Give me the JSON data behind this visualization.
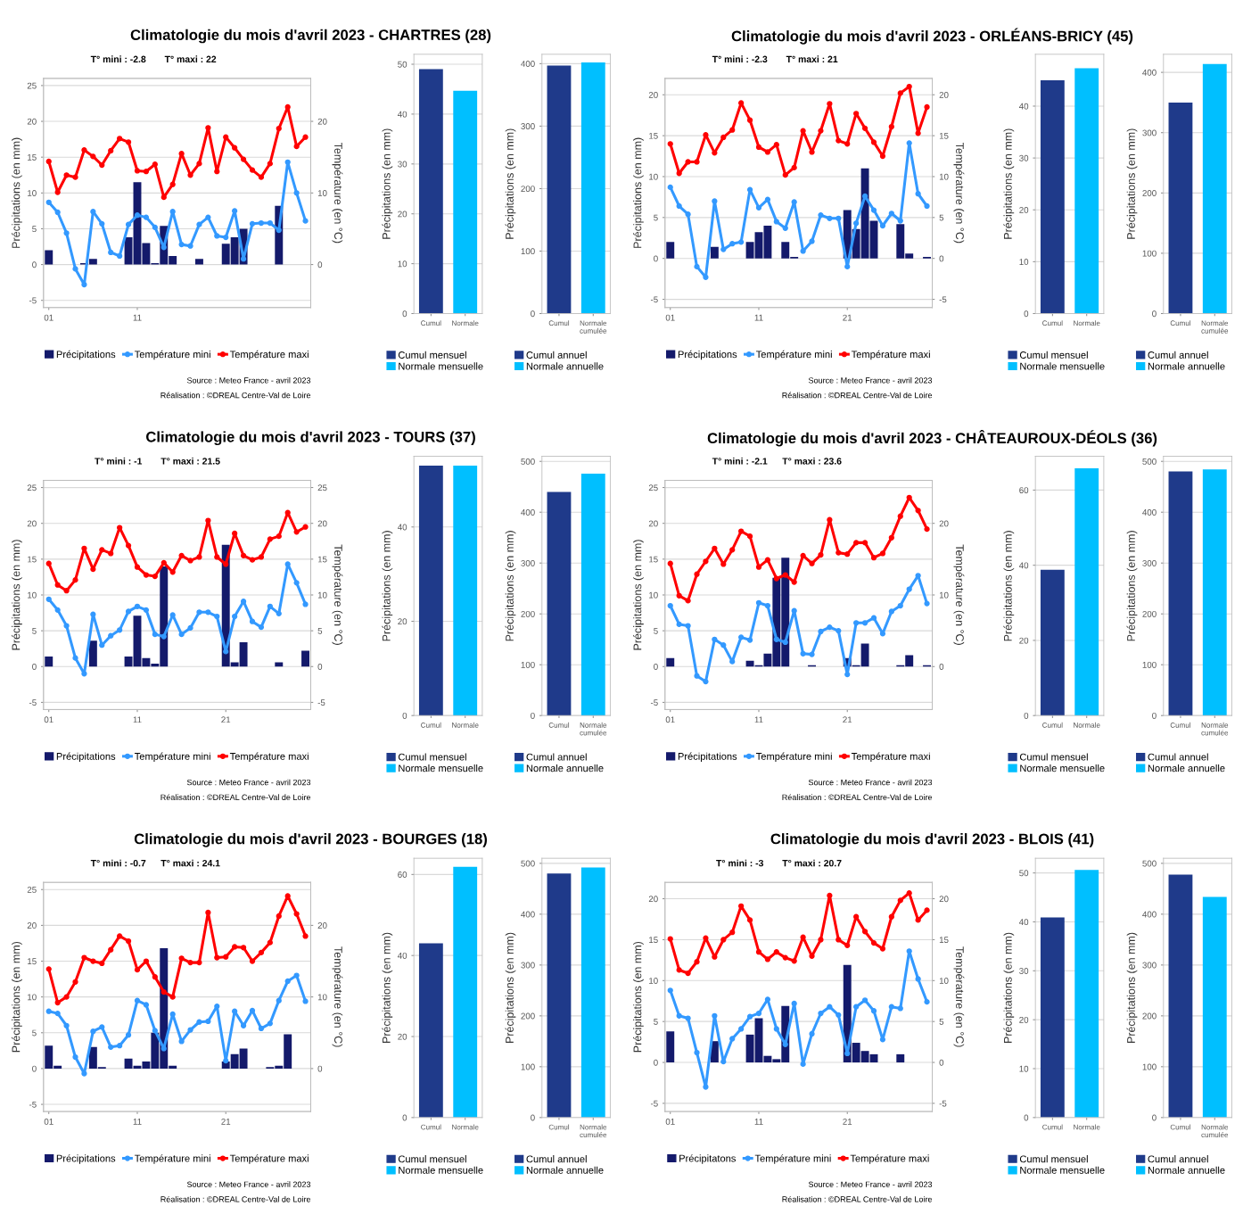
{
  "chart_data": [
    {
      "type": "bar",
      "title": "Climatologie du mois d'avril 2023 - CHARTRES (28)",
      "ylabel": "Précipitations (en mm)",
      "y2label": "Température (en °C)",
      "annotations": [
        "T° mini : -2.8",
        "T° maxi : 22",
        "Source : Meteo France - avril 2023",
        "Réalisation : ©DREAL Centre-Val de Loire"
      ],
      "categories": [
        "01",
        null,
        null,
        null,
        null,
        null,
        null,
        null,
        null,
        null,
        "11",
        null,
        null,
        null,
        null,
        null,
        null,
        null,
        null,
        null,
        null,
        null,
        null,
        null,
        null,
        null,
        null,
        null,
        null,
        null
      ],
      "series": [
        {
          "name": "Précipitations",
          "type": "bar",
          "color": "#141a6b",
          "values": [
            2.0,
            0,
            0,
            0,
            0.2,
            0.8,
            0,
            0,
            0,
            3.8,
            11.5,
            3.0,
            0.2,
            5.4,
            1.2,
            0,
            0,
            0.8,
            0,
            0,
            2.9,
            3.8,
            5.0,
            0,
            0,
            0,
            8.2,
            0,
            0,
            0
          ]
        },
        {
          "name": "Température mini",
          "type": "line",
          "axis": "y2",
          "color": "#3399ff",
          "values": [
            8.7,
            7.3,
            4.4,
            -0.6,
            -2.8,
            7.4,
            5.7,
            1.7,
            1.2,
            5.6,
            6.9,
            6.6,
            5.2,
            2.4,
            7.4,
            2.8,
            2.6,
            5.6,
            6.6,
            4.0,
            3.8,
            7.5,
            0.8,
            5.7,
            5.8,
            5.8,
            4.8,
            14.3,
            10.0,
            6.1
          ]
        },
        {
          "name": "Température maxi",
          "type": "line",
          "axis": "y2",
          "color": "#ff0000",
          "values": [
            14.4,
            10.1,
            12.5,
            12.2,
            16.0,
            15.1,
            13.9,
            15.9,
            17.6,
            17.1,
            13.1,
            13.0,
            14.0,
            9.4,
            11.2,
            15.5,
            12.5,
            14.1,
            19.1,
            13.0,
            17.8,
            16.3,
            14.7,
            13.2,
            12.2,
            14.1,
            19.0,
            22.0,
            16.5,
            17.8
          ]
        }
      ],
      "ylim": [
        -6,
        26
      ],
      "yticks": [
        -5,
        0,
        5,
        10,
        15,
        20,
        25
      ],
      "y2lim": [
        -6,
        26
      ],
      "y2ticks": [
        0,
        10,
        20
      ],
      "grid": "y",
      "legend": "bottom",
      "marker": "circle"
    },
    {
      "type": "bar",
      "ylabel": "Précipitations (en mm)",
      "categories": [
        "Cumul",
        "Normale"
      ],
      "stacked": true,
      "series": [
        {
          "name": "Cumul mensuel",
          "color": "#1f3a8a",
          "values": [
            49.0,
            null
          ]
        },
        {
          "name": "Normale mensuelle",
          "color": "#00bfff",
          "values": [
            null,
            44.7
          ]
        }
      ],
      "ylim": [
        0,
        52
      ],
      "yticks": [
        0,
        10,
        20,
        30,
        40,
        50
      ],
      "grid": "y",
      "legend": "bottom"
    },
    {
      "type": "bar",
      "ylabel": "Précipitations (en mm)",
      "categories": [
        "Cumul",
        "Normale\ncumulée"
      ],
      "stacked": true,
      "series": [
        {
          "name": "Cumul annuel",
          "color": "#1f3a8a",
          "values": [
            397,
            null
          ]
        },
        {
          "name": "Normale annuelle",
          "color": "#00bfff",
          "values": [
            null,
            402
          ]
        }
      ],
      "ylim": [
        0,
        415
      ],
      "yticks": [
        0,
        100,
        200,
        300,
        400
      ],
      "grid": "y",
      "legend": "bottom"
    },
    {
      "type": "bar",
      "title": "Climatologie du mois d'avril 2023 - ORLÉANS-BRICY (45)",
      "ylabel": "Précipitations (en mm)",
      "y2label": "Température (en °C)",
      "annotations": [
        "T° mini : -2.3",
        "T° maxi : 21",
        "Source : Meteo France - avril 2023",
        "Réalisation : ©DREAL Centre-Val de Loire"
      ],
      "categories": [
        "01",
        null,
        null,
        null,
        null,
        null,
        null,
        null,
        null,
        null,
        "11",
        null,
        null,
        null,
        null,
        null,
        null,
        null,
        null,
        null,
        "21",
        null,
        null,
        null,
        null,
        null,
        null,
        null,
        null,
        null
      ],
      "series": [
        {
          "name": "Précipitations",
          "type": "bar",
          "color": "#141a6b",
          "values": [
            2.0,
            0,
            0,
            0,
            0,
            1.4,
            0,
            0,
            0,
            2.0,
            3.2,
            4.0,
            0,
            2.0,
            0.2,
            0,
            0,
            0,
            0,
            0,
            5.9,
            3.6,
            11.0,
            4.6,
            0,
            0,
            4.2,
            0.6,
            0,
            0.2
          ]
        },
        {
          "name": "Température mini",
          "type": "line",
          "axis": "y2",
          "color": "#3399ff",
          "values": [
            8.7,
            6.4,
            5.4,
            -1.0,
            -2.3,
            7.0,
            1.1,
            1.8,
            2.0,
            8.4,
            6.2,
            7.2,
            4.5,
            3.7,
            6.9,
            0.9,
            2.1,
            5.3,
            4.9,
            4.9,
            -1.0,
            4.3,
            7.6,
            5.9,
            4.0,
            5.5,
            4.6,
            14.1,
            7.9,
            6.4
          ]
        },
        {
          "name": "Température maxi",
          "type": "line",
          "axis": "y2",
          "color": "#ff0000",
          "values": [
            14.0,
            10.4,
            11.8,
            11.8,
            15.1,
            12.9,
            14.8,
            15.7,
            19.0,
            16.9,
            13.6,
            13.0,
            13.9,
            10.2,
            11.1,
            15.6,
            13.0,
            15.6,
            18.9,
            14.4,
            14.0,
            17.7,
            15.9,
            14.2,
            12.5,
            16.1,
            20.2,
            21.0,
            15.3,
            18.5
          ]
        }
      ],
      "ylim": [
        -6,
        22
      ],
      "yticks": [
        -5,
        0,
        5,
        10,
        15,
        20
      ],
      "y2lim": [
        -6,
        22
      ],
      "y2ticks": [
        -5,
        0,
        5,
        10,
        15,
        20
      ],
      "grid": "y",
      "legend": "bottom",
      "marker": "circle"
    },
    {
      "type": "bar",
      "ylabel": "Précipitations (en mm)",
      "categories": [
        "Cumul",
        "Normale"
      ],
      "stacked": true,
      "series": [
        {
          "name": "Cumul mensuel",
          "color": "#1f3a8a",
          "values": [
            45.0,
            null
          ]
        },
        {
          "name": "Normale mensuelle",
          "color": "#00bfff",
          "values": [
            null,
            47.3
          ]
        }
      ],
      "ylim": [
        0,
        50
      ],
      "yticks": [
        0,
        10,
        20,
        30,
        40
      ],
      "grid": "y",
      "legend": "bottom"
    },
    {
      "type": "bar",
      "ylabel": "Précipitations (en mm)",
      "categories": [
        "Cumul",
        "Normale\ncumulée"
      ],
      "stacked": true,
      "series": [
        {
          "name": "Cumul annuel",
          "color": "#1f3a8a",
          "values": [
            350,
            null
          ]
        },
        {
          "name": "Normale annuelle",
          "color": "#00bfff",
          "values": [
            null,
            414
          ]
        }
      ],
      "ylim": [
        0,
        430
      ],
      "yticks": [
        0,
        100,
        200,
        300,
        400
      ],
      "grid": "y",
      "legend": "bottom"
    },
    {
      "type": "bar",
      "title": "Climatologie du mois d'avril 2023 - TOURS (37)",
      "ylabel": "Précipitations (en mm)",
      "y2label": "Température (en °C)",
      "annotations": [
        "T° mini : -1",
        "T° maxi : 21.5",
        "Source : Meteo France - avril 2023",
        "Réalisation : ©DREAL Centre-Val de Loire"
      ],
      "categories": [
        "01",
        null,
        null,
        null,
        null,
        null,
        null,
        null,
        null,
        null,
        "11",
        null,
        null,
        null,
        null,
        null,
        null,
        null,
        null,
        null,
        "21",
        null,
        null,
        null,
        null,
        null,
        null,
        null,
        null,
        null
      ],
      "series": [
        {
          "name": "Précipitations",
          "type": "bar",
          "color": "#141a6b",
          "values": [
            1.4,
            0,
            0,
            0,
            0,
            3.6,
            0,
            0,
            0,
            1.4,
            7.1,
            1.2,
            0.4,
            14.0,
            0,
            0,
            0,
            0,
            0,
            0,
            17.0,
            0.6,
            3.4,
            0,
            0,
            0,
            0.6,
            0,
            0,
            2.2
          ]
        },
        {
          "name": "Température mini",
          "type": "line",
          "axis": "y2",
          "color": "#3399ff",
          "values": [
            9.4,
            7.9,
            5.7,
            1.2,
            -1.0,
            7.3,
            3.0,
            4.3,
            5.1,
            7.7,
            8.4,
            7.9,
            4.5,
            4.2,
            7.2,
            4.5,
            5.4,
            7.6,
            7.6,
            7.0,
            2.1,
            7.0,
            9.1,
            6.3,
            5.5,
            8.4,
            7.4,
            14.3,
            11.7,
            8.7
          ]
        },
        {
          "name": "Température maxi",
          "type": "line",
          "axis": "y2",
          "color": "#ff0000",
          "values": [
            14.4,
            11.4,
            10.6,
            12.1,
            16.5,
            13.6,
            16.3,
            15.8,
            19.4,
            16.9,
            13.9,
            12.8,
            12.6,
            14.5,
            13.2,
            15.5,
            14.8,
            15.3,
            20.4,
            15.3,
            14.3,
            18.6,
            15.5,
            14.9,
            15.3,
            17.8,
            18.2,
            21.5,
            18.8,
            19.5
          ]
        }
      ],
      "ylim": [
        -6,
        26
      ],
      "yticks": [
        -5,
        0,
        5,
        10,
        15,
        20,
        25
      ],
      "y2lim": [
        -6,
        26
      ],
      "y2ticks": [
        -5,
        0,
        5,
        10,
        15,
        20,
        25
      ],
      "grid": "y",
      "legend": "bottom",
      "marker": "circle"
    },
    {
      "type": "bar",
      "ylabel": "Précipitations (en mm)",
      "categories": [
        "Cumul",
        "Normale"
      ],
      "stacked": true,
      "series": [
        {
          "name": "Cumul mensuel",
          "color": "#1f3a8a",
          "values": [
            53.0,
            null
          ]
        },
        {
          "name": "Normale mensuelle",
          "color": "#00bfff",
          "values": [
            null,
            53.0
          ]
        }
      ],
      "ylim": [
        0,
        55
      ],
      "yticks": [
        0,
        20,
        40
      ],
      "grid": "y",
      "legend": "bottom"
    },
    {
      "type": "bar",
      "ylabel": "Précipitations (en mm)",
      "categories": [
        "Cumul",
        "Normale\ncumulée"
      ],
      "stacked": true,
      "series": [
        {
          "name": "Cumul annuel",
          "color": "#1f3a8a",
          "values": [
            440,
            null
          ]
        },
        {
          "name": "Normale annuelle",
          "color": "#00bfff",
          "values": [
            null,
            476
          ]
        }
      ],
      "ylim": [
        0,
        510
      ],
      "yticks": [
        0,
        100,
        200,
        300,
        400,
        500
      ],
      "grid": "y",
      "legend": "bottom"
    },
    {
      "type": "bar",
      "title": "Climatologie du mois d'avril 2023 - CHÂTEAUROUX-DÉOLS (36)",
      "ylabel": "Précipitations (en mm)",
      "y2label": "Température (en °C)",
      "annotations": [
        "T° mini : -2.1",
        "T° maxi : 23.6",
        "Source : Meteo France - avril 2023",
        "Réalisation : ©DREAL Centre-Val de Loire"
      ],
      "categories": [
        "01",
        null,
        null,
        null,
        null,
        null,
        null,
        null,
        null,
        null,
        "11",
        null,
        null,
        null,
        null,
        null,
        null,
        null,
        null,
        null,
        "21",
        null,
        null,
        null,
        null,
        null,
        null,
        null,
        null,
        null
      ],
      "series": [
        {
          "name": "Précipitations",
          "type": "bar",
          "color": "#141a6b",
          "values": [
            1.2,
            0,
            0,
            0,
            0,
            0,
            0,
            0,
            0,
            0.8,
            0.2,
            1.8,
            12.4,
            15.2,
            0,
            0,
            0.2,
            0,
            0,
            0,
            1.2,
            0.2,
            3.2,
            0,
            0,
            0,
            0.2,
            1.6,
            0,
            0.2
          ]
        },
        {
          "name": "Température mini",
          "type": "line",
          "axis": "y2",
          "color": "#3399ff",
          "values": [
            8.5,
            5.9,
            5.7,
            -1.3,
            -2.1,
            3.8,
            3.0,
            0.7,
            4.1,
            3.7,
            8.9,
            8.5,
            3.8,
            3.4,
            7.8,
            1.8,
            1.7,
            4.9,
            5.5,
            5.0,
            -1.1,
            6.1,
            6.1,
            6.8,
            4.6,
            7.7,
            8.5,
            10.8,
            12.7,
            8.8
          ]
        },
        {
          "name": "Température maxi",
          "type": "line",
          "axis": "y2",
          "color": "#ff0000",
          "values": [
            14.4,
            9.9,
            9.2,
            12.9,
            14.7,
            16.5,
            14.3,
            16.3,
            18.9,
            18.2,
            13.9,
            14.9,
            12.3,
            12.8,
            11.8,
            15.5,
            14.4,
            15.6,
            20.5,
            15.9,
            15.7,
            17.3,
            17.3,
            15.2,
            15.8,
            18.0,
            21.0,
            23.6,
            21.8,
            19.2
          ]
        }
      ],
      "ylim": [
        -6,
        26
      ],
      "yticks": [
        -5,
        0,
        5,
        10,
        15,
        20,
        25
      ],
      "y2lim": [
        -6,
        26
      ],
      "y2ticks": [
        0,
        10,
        20
      ],
      "grid": "y",
      "legend": "bottom",
      "marker": "circle"
    },
    {
      "type": "bar",
      "ylabel": "Précipitations (en mm)",
      "categories": [
        "Cumul",
        "Normale"
      ],
      "stacked": true,
      "series": [
        {
          "name": "Cumul mensuel",
          "color": "#1f3a8a",
          "values": [
            38.8,
            null
          ]
        },
        {
          "name": "Normale mensuelle",
          "color": "#00bfff",
          "values": [
            null,
            65.8
          ]
        }
      ],
      "ylim": [
        0,
        69
      ],
      "yticks": [
        0,
        20,
        40,
        60
      ],
      "grid": "y",
      "legend": "bottom"
    },
    {
      "type": "bar",
      "ylabel": "Précipitations (en mm)",
      "categories": [
        "Cumul",
        "Normale\ncumulée"
      ],
      "stacked": true,
      "series": [
        {
          "name": "Cumul annuel",
          "color": "#1f3a8a",
          "values": [
            480,
            null
          ]
        },
        {
          "name": "Normale annuelle",
          "color": "#00bfff",
          "values": [
            null,
            484
          ]
        }
      ],
      "ylim": [
        0,
        510
      ],
      "yticks": [
        0,
        100,
        200,
        300,
        400,
        500
      ],
      "grid": "y",
      "legend": "bottom"
    },
    {
      "type": "bar",
      "title": "Climatologie du mois d'avril 2023 - BOURGES (18)",
      "ylabel": "Précipitations (en mm)",
      "y2label": "Température (en °C)",
      "annotations": [
        "T° mini : -0.7",
        "T° maxi : 24.1",
        "Source : Meteo France - avril 2023",
        "Réalisation : ©DREAL Centre-Val de Loire"
      ],
      "categories": [
        "01",
        null,
        null,
        null,
        null,
        null,
        null,
        null,
        null,
        null,
        "11",
        null,
        null,
        null,
        null,
        null,
        null,
        null,
        null,
        null,
        "21",
        null,
        null,
        null,
        null,
        null,
        null,
        null,
        null,
        null
      ],
      "series": [
        {
          "name": "Précipitations",
          "type": "bar",
          "color": "#141a6b",
          "values": [
            3.2,
            0.4,
            0,
            0,
            0,
            3.0,
            0.2,
            0,
            0,
            1.4,
            0.4,
            1.0,
            5.0,
            16.8,
            0.4,
            0,
            0,
            0,
            0,
            0,
            1.0,
            2.0,
            2.8,
            0,
            0,
            0.2,
            0.4,
            4.8,
            0,
            0
          ]
        },
        {
          "name": "Température mini",
          "type": "line",
          "axis": "y2",
          "color": "#3399ff",
          "values": [
            8.0,
            7.7,
            6.0,
            1.6,
            -0.7,
            5.2,
            5.8,
            3.0,
            3.2,
            4.7,
            9.5,
            8.9,
            5.3,
            2.8,
            7.6,
            3.8,
            5.4,
            6.5,
            6.6,
            8.7,
            1.1,
            8.0,
            6.0,
            8.1,
            5.6,
            6.3,
            9.5,
            12.2,
            13.0,
            9.4
          ]
        },
        {
          "name": "Température maxi",
          "type": "line",
          "axis": "y2",
          "color": "#ff0000",
          "values": [
            13.9,
            9.2,
            10.0,
            12.1,
            15.5,
            15.0,
            14.7,
            16.6,
            18.5,
            17.8,
            13.8,
            15.0,
            12.8,
            10.7,
            10.0,
            15.4,
            14.8,
            14.8,
            21.8,
            15.5,
            15.6,
            17.0,
            16.9,
            15.0,
            16.2,
            17.6,
            21.3,
            24.1,
            21.6,
            18.5
          ]
        }
      ],
      "ylim": [
        -6,
        26
      ],
      "yticks": [
        -5,
        0,
        5,
        10,
        15,
        20,
        25
      ],
      "y2lim": [
        -6,
        26
      ],
      "y2ticks": [
        0,
        10,
        20
      ],
      "grid": "y",
      "legend": "bottom",
      "marker": "circle"
    },
    {
      "type": "bar",
      "ylabel": "Précipitations (en mm)",
      "categories": [
        "Cumul",
        "Normale"
      ],
      "stacked": true,
      "series": [
        {
          "name": "Cumul mensuel",
          "color": "#1f3a8a",
          "values": [
            43.0,
            null
          ]
        },
        {
          "name": "Normale mensuelle",
          "color": "#00bfff",
          "values": [
            null,
            61.9
          ]
        }
      ],
      "ylim": [
        0,
        64
      ],
      "yticks": [
        0,
        20,
        40,
        60
      ],
      "grid": "y",
      "legend": "bottom"
    },
    {
      "type": "bar",
      "ylabel": "Précipitations (en mm)",
      "categories": [
        "Cumul",
        "Normale\ncumulée"
      ],
      "stacked": true,
      "series": [
        {
          "name": "Cumul annuel",
          "color": "#1f3a8a",
          "values": [
            480,
            null
          ]
        },
        {
          "name": "Normale annuelle",
          "color": "#00bfff",
          "values": [
            null,
            492
          ]
        }
      ],
      "ylim": [
        0,
        510
      ],
      "yticks": [
        0,
        100,
        200,
        300,
        400,
        500
      ],
      "grid": "y",
      "legend": "bottom"
    },
    {
      "type": "bar",
      "title": "Climatologie du mois d'avril 2023 - BLOIS (41)",
      "ylabel": "Précipitations (en mm)",
      "y2label": "Température (en °C)",
      "annotations": [
        "T° mini : -3",
        "T° maxi : 20.7",
        "Source : Meteo France - avril 2023",
        "Réalisation : ©DREAL Centre-Val de Loire"
      ],
      "categories": [
        "01",
        null,
        null,
        null,
        null,
        null,
        null,
        null,
        null,
        null,
        "11",
        null,
        null,
        null,
        null,
        null,
        null,
        null,
        null,
        null,
        "21",
        null,
        null,
        null,
        null,
        null,
        null,
        null,
        null,
        null
      ],
      "series": [
        {
          "name": "Précipitatons",
          "type": "bar",
          "color": "#141a6b",
          "values": [
            3.8,
            0,
            0,
            0,
            0,
            2.6,
            0,
            0,
            0,
            3.4,
            5.4,
            0.8,
            0.4,
            6.9,
            0,
            0,
            0,
            0,
            0,
            0,
            11.9,
            2.4,
            1.4,
            1.0,
            0,
            0,
            1.0,
            0,
            0,
            0
          ]
        },
        {
          "name": "Température mini",
          "type": "line",
          "axis": "y2",
          "color": "#3399ff",
          "values": [
            8.8,
            5.7,
            5.4,
            1.2,
            -3.0,
            5.7,
            0.1,
            2.9,
            4.1,
            5.6,
            6.0,
            7.7,
            4.1,
            2.2,
            7.2,
            -0.2,
            3.5,
            6.0,
            6.8,
            5.8,
            1.1,
            6.8,
            7.6,
            6.3,
            2.8,
            6.8,
            6.6,
            13.6,
            10.2,
            7.4
          ]
        },
        {
          "name": "Température maxi",
          "type": "line",
          "axis": "y2",
          "color": "#ff0000",
          "values": [
            15.1,
            11.3,
            10.9,
            12.3,
            15.2,
            12.9,
            15.0,
            15.9,
            19.1,
            17.4,
            13.5,
            12.6,
            13.5,
            12.8,
            12.4,
            15.3,
            13.0,
            15.0,
            20.4,
            15.0,
            14.3,
            17.8,
            16.0,
            14.6,
            13.9,
            17.8,
            19.8,
            20.7,
            17.4,
            18.6
          ]
        }
      ],
      "ylim": [
        -6,
        22
      ],
      "yticks": [
        -5,
        0,
        5,
        10,
        15,
        20
      ],
      "y2lim": [
        -6,
        22
      ],
      "y2ticks": [
        -5,
        0,
        5,
        10,
        15,
        20
      ],
      "grid": "y",
      "legend": "bottom",
      "marker": "circle"
    },
    {
      "type": "bar",
      "ylabel": "Précipitations (en mm)",
      "categories": [
        "Cumul",
        "Normale"
      ],
      "stacked": true,
      "series": [
        {
          "name": "Cumul mensuel",
          "color": "#1f3a8a",
          "values": [
            40.9,
            null
          ]
        },
        {
          "name": "Normale mensuelle",
          "color": "#00bfff",
          "values": [
            null,
            50.6
          ]
        }
      ],
      "ylim": [
        0,
        53
      ],
      "yticks": [
        0,
        10,
        20,
        30,
        40,
        50
      ],
      "grid": "y",
      "legend": "bottom"
    },
    {
      "type": "bar",
      "ylabel": "Précipitations (en mm)",
      "categories": [
        "Cumul",
        "Normale\ncumulée"
      ],
      "stacked": true,
      "series": [
        {
          "name": "Cumul annuel",
          "color": "#1f3a8a",
          "values": [
            478,
            null
          ]
        },
        {
          "name": "Normale annuelle",
          "color": "#00bfff",
          "values": [
            null,
            434
          ]
        }
      ],
      "ylim": [
        0,
        510
      ],
      "yticks": [
        0,
        100,
        200,
        300,
        400,
        500
      ],
      "grid": "y",
      "legend": "bottom"
    }
  ]
}
